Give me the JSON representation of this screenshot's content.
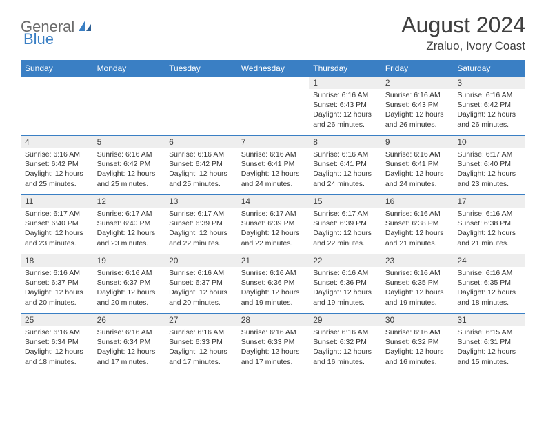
{
  "brand": {
    "general": "General",
    "blue": "Blue"
  },
  "title": "August 2024",
  "location": "Zraluo, Ivory Coast",
  "accent_color": "#3a7fc4",
  "gray_bg": "#eeeeee",
  "day_headers": [
    "Sunday",
    "Monday",
    "Tuesday",
    "Wednesday",
    "Thursday",
    "Friday",
    "Saturday"
  ],
  "weeks": [
    [
      {
        "day": "",
        "sunrise": "",
        "sunset": "",
        "daylight": ""
      },
      {
        "day": "",
        "sunrise": "",
        "sunset": "",
        "daylight": ""
      },
      {
        "day": "",
        "sunrise": "",
        "sunset": "",
        "daylight": ""
      },
      {
        "day": "",
        "sunrise": "",
        "sunset": "",
        "daylight": ""
      },
      {
        "day": "1",
        "sunrise": "Sunrise: 6:16 AM",
        "sunset": "Sunset: 6:43 PM",
        "daylight": "Daylight: 12 hours and 26 minutes."
      },
      {
        "day": "2",
        "sunrise": "Sunrise: 6:16 AM",
        "sunset": "Sunset: 6:43 PM",
        "daylight": "Daylight: 12 hours and 26 minutes."
      },
      {
        "day": "3",
        "sunrise": "Sunrise: 6:16 AM",
        "sunset": "Sunset: 6:42 PM",
        "daylight": "Daylight: 12 hours and 26 minutes."
      }
    ],
    [
      {
        "day": "4",
        "sunrise": "Sunrise: 6:16 AM",
        "sunset": "Sunset: 6:42 PM",
        "daylight": "Daylight: 12 hours and 25 minutes."
      },
      {
        "day": "5",
        "sunrise": "Sunrise: 6:16 AM",
        "sunset": "Sunset: 6:42 PM",
        "daylight": "Daylight: 12 hours and 25 minutes."
      },
      {
        "day": "6",
        "sunrise": "Sunrise: 6:16 AM",
        "sunset": "Sunset: 6:42 PM",
        "daylight": "Daylight: 12 hours and 25 minutes."
      },
      {
        "day": "7",
        "sunrise": "Sunrise: 6:16 AM",
        "sunset": "Sunset: 6:41 PM",
        "daylight": "Daylight: 12 hours and 24 minutes."
      },
      {
        "day": "8",
        "sunrise": "Sunrise: 6:16 AM",
        "sunset": "Sunset: 6:41 PM",
        "daylight": "Daylight: 12 hours and 24 minutes."
      },
      {
        "day": "9",
        "sunrise": "Sunrise: 6:16 AM",
        "sunset": "Sunset: 6:41 PM",
        "daylight": "Daylight: 12 hours and 24 minutes."
      },
      {
        "day": "10",
        "sunrise": "Sunrise: 6:17 AM",
        "sunset": "Sunset: 6:40 PM",
        "daylight": "Daylight: 12 hours and 23 minutes."
      }
    ],
    [
      {
        "day": "11",
        "sunrise": "Sunrise: 6:17 AM",
        "sunset": "Sunset: 6:40 PM",
        "daylight": "Daylight: 12 hours and 23 minutes."
      },
      {
        "day": "12",
        "sunrise": "Sunrise: 6:17 AM",
        "sunset": "Sunset: 6:40 PM",
        "daylight": "Daylight: 12 hours and 23 minutes."
      },
      {
        "day": "13",
        "sunrise": "Sunrise: 6:17 AM",
        "sunset": "Sunset: 6:39 PM",
        "daylight": "Daylight: 12 hours and 22 minutes."
      },
      {
        "day": "14",
        "sunrise": "Sunrise: 6:17 AM",
        "sunset": "Sunset: 6:39 PM",
        "daylight": "Daylight: 12 hours and 22 minutes."
      },
      {
        "day": "15",
        "sunrise": "Sunrise: 6:17 AM",
        "sunset": "Sunset: 6:39 PM",
        "daylight": "Daylight: 12 hours and 22 minutes."
      },
      {
        "day": "16",
        "sunrise": "Sunrise: 6:16 AM",
        "sunset": "Sunset: 6:38 PM",
        "daylight": "Daylight: 12 hours and 21 minutes."
      },
      {
        "day": "17",
        "sunrise": "Sunrise: 6:16 AM",
        "sunset": "Sunset: 6:38 PM",
        "daylight": "Daylight: 12 hours and 21 minutes."
      }
    ],
    [
      {
        "day": "18",
        "sunrise": "Sunrise: 6:16 AM",
        "sunset": "Sunset: 6:37 PM",
        "daylight": "Daylight: 12 hours and 20 minutes."
      },
      {
        "day": "19",
        "sunrise": "Sunrise: 6:16 AM",
        "sunset": "Sunset: 6:37 PM",
        "daylight": "Daylight: 12 hours and 20 minutes."
      },
      {
        "day": "20",
        "sunrise": "Sunrise: 6:16 AM",
        "sunset": "Sunset: 6:37 PM",
        "daylight": "Daylight: 12 hours and 20 minutes."
      },
      {
        "day": "21",
        "sunrise": "Sunrise: 6:16 AM",
        "sunset": "Sunset: 6:36 PM",
        "daylight": "Daylight: 12 hours and 19 minutes."
      },
      {
        "day": "22",
        "sunrise": "Sunrise: 6:16 AM",
        "sunset": "Sunset: 6:36 PM",
        "daylight": "Daylight: 12 hours and 19 minutes."
      },
      {
        "day": "23",
        "sunrise": "Sunrise: 6:16 AM",
        "sunset": "Sunset: 6:35 PM",
        "daylight": "Daylight: 12 hours and 19 minutes."
      },
      {
        "day": "24",
        "sunrise": "Sunrise: 6:16 AM",
        "sunset": "Sunset: 6:35 PM",
        "daylight": "Daylight: 12 hours and 18 minutes."
      }
    ],
    [
      {
        "day": "25",
        "sunrise": "Sunrise: 6:16 AM",
        "sunset": "Sunset: 6:34 PM",
        "daylight": "Daylight: 12 hours and 18 minutes."
      },
      {
        "day": "26",
        "sunrise": "Sunrise: 6:16 AM",
        "sunset": "Sunset: 6:34 PM",
        "daylight": "Daylight: 12 hours and 17 minutes."
      },
      {
        "day": "27",
        "sunrise": "Sunrise: 6:16 AM",
        "sunset": "Sunset: 6:33 PM",
        "daylight": "Daylight: 12 hours and 17 minutes."
      },
      {
        "day": "28",
        "sunrise": "Sunrise: 6:16 AM",
        "sunset": "Sunset: 6:33 PM",
        "daylight": "Daylight: 12 hours and 17 minutes."
      },
      {
        "day": "29",
        "sunrise": "Sunrise: 6:16 AM",
        "sunset": "Sunset: 6:32 PM",
        "daylight": "Daylight: 12 hours and 16 minutes."
      },
      {
        "day": "30",
        "sunrise": "Sunrise: 6:16 AM",
        "sunset": "Sunset: 6:32 PM",
        "daylight": "Daylight: 12 hours and 16 minutes."
      },
      {
        "day": "31",
        "sunrise": "Sunrise: 6:15 AM",
        "sunset": "Sunset: 6:31 PM",
        "daylight": "Daylight: 12 hours and 15 minutes."
      }
    ]
  ]
}
